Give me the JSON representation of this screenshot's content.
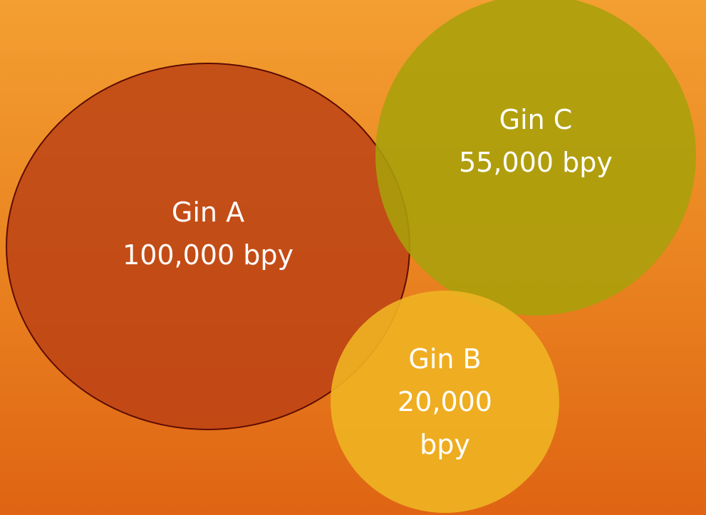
{
  "nodes": [
    {
      "name": "Gin A",
      "value": "100,000 bpy"
    },
    {
      "name": "Gin C",
      "value": "55,000 bpy"
    },
    {
      "name": "Gin B",
      "value": "20,000 bpy"
    }
  ]
}
